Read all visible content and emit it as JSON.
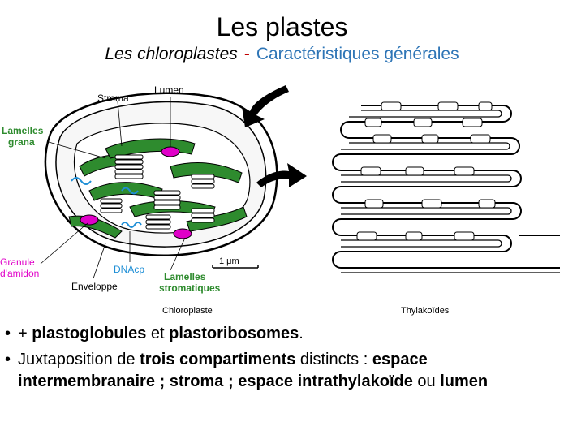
{
  "title": "Les plastes",
  "subtitle": {
    "part1": "Les chloroplastes",
    "sep": "-",
    "part2": "Caractéristiques générales"
  },
  "figure": {
    "labels": {
      "stroma": "Stroma",
      "lumen": "Lumen",
      "lamelles_grana_1": "Lamelles",
      "lamelles_grana_2": "grana",
      "granule_1": "Granule",
      "granule_2": "d'amidon",
      "dnacp": "DNAcp",
      "enveloppe": "Enveloppe",
      "lamelles_strom_1": "Lamelles",
      "lamelles_strom_2": "stromatiques",
      "scale": "1 μm",
      "caption_left": "Chloroplaste",
      "caption_right": "Thylakoïdes"
    },
    "colors": {
      "green": "#2e8b2e",
      "magenta": "#e000c8",
      "blue": "#1f8fd6",
      "black": "#000000"
    }
  },
  "bullets": [
    {
      "bullet": "•",
      "segments": [
        {
          "text": "+ ",
          "bold": false
        },
        {
          "text": "plastoglobules",
          "bold": true
        },
        {
          "text": " et ",
          "bold": false
        },
        {
          "text": "plastoribosomes",
          "bold": true
        },
        {
          "text": ".",
          "bold": false
        }
      ]
    },
    {
      "bullet": "•",
      "segments": [
        {
          "text": "Juxtaposition de ",
          "bold": false
        },
        {
          "text": "trois compartiments",
          "bold": true
        },
        {
          "text": " distincts : ",
          "bold": false
        },
        {
          "text": "espace intermembranaire ; stroma ; espace intrathylakoïde",
          "bold": true
        },
        {
          "text": " ou ",
          "bold": false
        },
        {
          "text": "lumen",
          "bold": true
        }
      ]
    }
  ]
}
